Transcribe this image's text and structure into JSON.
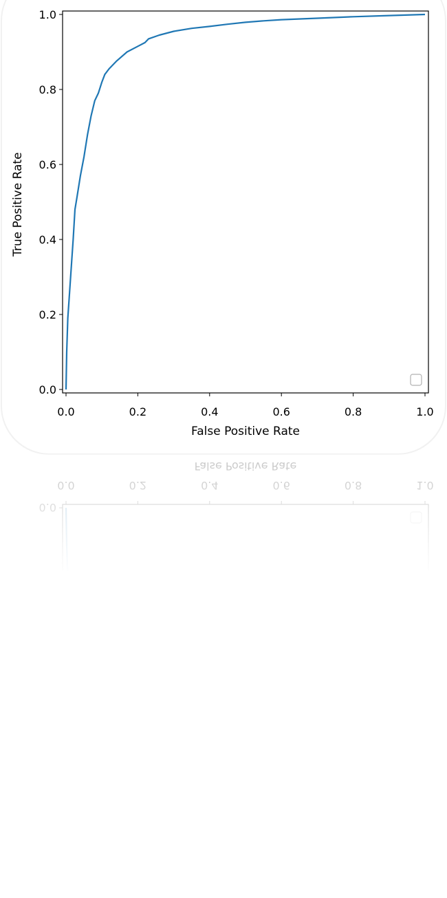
{
  "chart_data": {
    "type": "line",
    "title": "",
    "xlabel": "False Positive Rate",
    "ylabel": "True Positive Rate",
    "xlim": [
      0.0,
      1.0
    ],
    "ylim": [
      0.0,
      1.0
    ],
    "x_ticks": [
      "0.0",
      "0.2",
      "0.4",
      "0.6",
      "0.8",
      "1.0"
    ],
    "y_ticks": [
      "0.0",
      "0.2",
      "0.4",
      "0.6",
      "0.8",
      "1.0"
    ],
    "grid": false,
    "legend": {
      "position": "lower right",
      "entries": []
    },
    "series": [
      {
        "color": "#1f77b4",
        "x": [
          0.0,
          0.002,
          0.005,
          0.01,
          0.015,
          0.02,
          0.025,
          0.03,
          0.04,
          0.05,
          0.06,
          0.07,
          0.08,
          0.09,
          0.1,
          0.108,
          0.12,
          0.14,
          0.17,
          0.2,
          0.22,
          0.23,
          0.26,
          0.3,
          0.35,
          0.4,
          0.45,
          0.5,
          0.55,
          0.6,
          0.7,
          0.8,
          0.9,
          1.0
        ],
        "y": [
          0.0,
          0.1,
          0.19,
          0.26,
          0.33,
          0.4,
          0.48,
          0.51,
          0.57,
          0.62,
          0.68,
          0.73,
          0.77,
          0.79,
          0.82,
          0.84,
          0.855,
          0.875,
          0.9,
          0.915,
          0.925,
          0.935,
          0.945,
          0.955,
          0.963,
          0.968,
          0.974,
          0.979,
          0.983,
          0.986,
          0.99,
          0.994,
          0.997,
          1.0
        ]
      }
    ]
  }
}
